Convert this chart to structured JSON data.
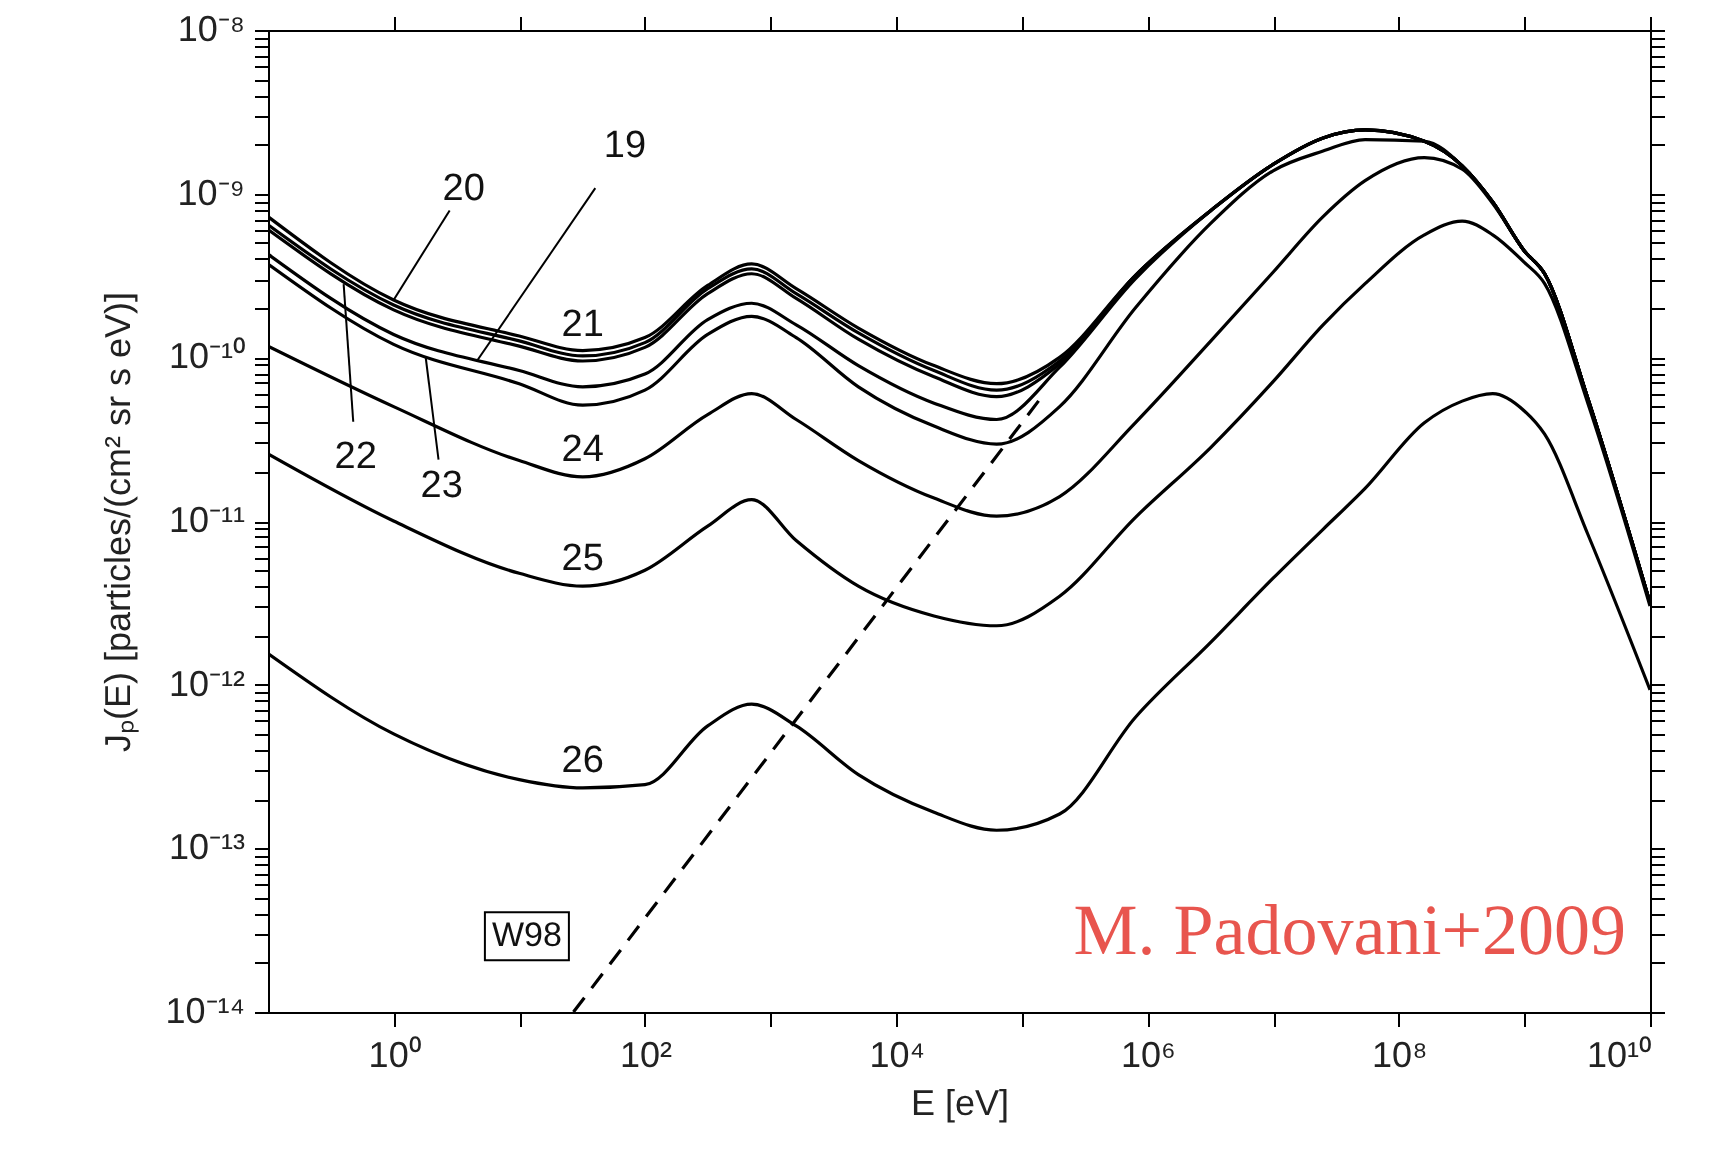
{
  "chart_data": {
    "type": "line",
    "xlabel": "E [eV]",
    "ylabel": "Jₚ(E) [particles/(cm² sr s eV)]",
    "log": "xy",
    "xlim": [
      0.1,
      10000000000.0
    ],
    "ylim": [
      1e-14,
      1e-08
    ],
    "xticks": [
      {
        "value": 1,
        "label": "10⁰"
      },
      {
        "value": 10,
        "label": null
      },
      {
        "value": 100,
        "label": "10²"
      },
      {
        "value": 1000,
        "label": null
      },
      {
        "value": 10000.0,
        "label": "10⁴"
      },
      {
        "value": 100000.0,
        "label": null
      },
      {
        "value": 1000000.0,
        "label": "10⁶"
      },
      {
        "value": 10000000.0,
        "label": null
      },
      {
        "value": 100000000.0,
        "label": "10⁸"
      },
      {
        "value": 1000000000.0,
        "label": null
      },
      {
        "value": 10000000000.0,
        "label": "10¹⁰"
      }
    ],
    "yticks": [
      {
        "value": 1e-14,
        "label": "10⁻¹⁴"
      },
      {
        "value": 2e-14,
        "label": null
      },
      {
        "value": 3e-14,
        "label": null
      },
      {
        "value": 4e-14,
        "label": null
      },
      {
        "value": 5e-14,
        "label": null
      },
      {
        "value": 6e-14,
        "label": null
      },
      {
        "value": 7e-14,
        "label": null
      },
      {
        "value": 8e-14,
        "label": null
      },
      {
        "value": 9e-14,
        "label": null
      },
      {
        "value": 1e-13,
        "label": "10⁻¹³"
      },
      {
        "value": 2e-13,
        "label": null
      },
      {
        "value": 3e-13,
        "label": null
      },
      {
        "value": 4e-13,
        "label": null
      },
      {
        "value": 5e-13,
        "label": null
      },
      {
        "value": 6e-13,
        "label": null
      },
      {
        "value": 7e-13,
        "label": null
      },
      {
        "value": 8e-13,
        "label": null
      },
      {
        "value": 9e-13,
        "label": null
      },
      {
        "value": 1e-12,
        "label": "10⁻¹²"
      },
      {
        "value": 2e-12,
        "label": null
      },
      {
        "value": 3e-12,
        "label": null
      },
      {
        "value": 4e-12,
        "label": null
      },
      {
        "value": 5e-12,
        "label": null
      },
      {
        "value": 6e-12,
        "label": null
      },
      {
        "value": 7e-12,
        "label": null
      },
      {
        "value": 8e-12,
        "label": null
      },
      {
        "value": 9e-12,
        "label": null
      },
      {
        "value": 1e-11,
        "label": "10⁻¹¹"
      },
      {
        "value": 2e-11,
        "label": null
      },
      {
        "value": 3e-11,
        "label": null
      },
      {
        "value": 4e-11,
        "label": null
      },
      {
        "value": 5e-11,
        "label": null
      },
      {
        "value": 6e-11,
        "label": null
      },
      {
        "value": 7e-11,
        "label": null
      },
      {
        "value": 8e-11,
        "label": null
      },
      {
        "value": 9e-11,
        "label": null
      },
      {
        "value": 1e-10,
        "label": "10⁻¹⁰"
      },
      {
        "value": 2e-10,
        "label": null
      },
      {
        "value": 3e-10,
        "label": null
      },
      {
        "value": 4e-10,
        "label": null
      },
      {
        "value": 5e-10,
        "label": null
      },
      {
        "value": 6e-10,
        "label": null
      },
      {
        "value": 7e-10,
        "label": null
      },
      {
        "value": 8e-10,
        "label": null
      },
      {
        "value": 9e-10,
        "label": null
      },
      {
        "value": 1e-09,
        "label": "10⁻⁹"
      },
      {
        "value": 2e-09,
        "label": null
      },
      {
        "value": 3e-09,
        "label": null
      },
      {
        "value": 4e-09,
        "label": null
      },
      {
        "value": 5e-09,
        "label": null
      },
      {
        "value": 6e-09,
        "label": null
      },
      {
        "value": 7e-09,
        "label": null
      },
      {
        "value": 8e-09,
        "label": null
      },
      {
        "value": 9e-09,
        "label": null
      },
      {
        "value": 1e-08,
        "label": "10⁻⁸"
      }
    ],
    "x": [
      0.1,
      1,
      10,
      32,
      100,
      316,
      708,
      1600,
      5000,
      20000,
      63000,
      200000,
      800000,
      3200000,
      10000000,
      25000000,
      54000000,
      160000000,
      320000000,
      560000000,
      1000000000,
      1450000000,
      3200000000,
      10000000000
    ],
    "line_style": "solid",
    "series": [
      {
        "color": "#000000",
        "values": [
          7.24e-10,
          2.24e-10,
          1.35e-10,
          1.1e-10,
          1.32e-10,
          2.75e-10,
          3.72e-10,
          2.63e-10,
          1.51e-10,
          8.9e-11,
          6.9e-11,
          1e-10,
          3.16e-10,
          7.9e-10,
          1.51e-09,
          2.19e-09,
          2.45e-09,
          2.09e-09,
          1.48e-09,
          8.9e-10,
          4.47e-10,
          3.24e-10,
          5.6e-11,
          3.16e-12
        ]
      },
      {
        "color": "#000000",
        "values": [
          6.46e-10,
          2.09e-10,
          1.26e-10,
          1.02e-10,
          1.23e-10,
          2.63e-10,
          3.47e-10,
          2.45e-10,
          1.41e-10,
          8.3e-11,
          6.3e-11,
          9.5e-11,
          3.16e-10,
          7.9e-10,
          1.51e-09,
          2.19e-09,
          2.45e-09,
          2.09e-09,
          1.48e-09,
          8.9e-10,
          4.47e-10,
          3.24e-10,
          5.6e-11,
          3.16e-12
        ]
      },
      {
        "color": "#000000",
        "values": [
          6.03e-10,
          1.95e-10,
          1.17e-10,
          9.5e-11,
          1.15e-10,
          2.45e-10,
          3.24e-10,
          2.29e-10,
          1.29e-10,
          7.6e-11,
          5.75e-11,
          9.1e-11,
          3.16e-10,
          7.9e-10,
          1.51e-09,
          2.19e-09,
          2.45e-09,
          2.09e-09,
          1.48e-09,
          8.9e-10,
          4.47e-10,
          3.24e-10,
          5.6e-11,
          3.16e-12
        ]
      },
      {
        "color": "#000000",
        "values": [
          4.27e-10,
          1.38e-10,
          8.3e-11,
          6.6e-11,
          7.9e-11,
          1.7e-10,
          2.14e-10,
          1.58e-10,
          8.9e-11,
          5.25e-11,
          4.17e-11,
          8.7e-11,
          3.02e-10,
          7.9e-10,
          1.51e-09,
          2.19e-09,
          2.45e-09,
          2.09e-09,
          1.48e-09,
          8.9e-10,
          4.47e-10,
          3.24e-10,
          5.6e-11,
          3.16e-12
        ]
      },
      {
        "color": "#000000",
        "values": [
          3.72e-10,
          1.2e-10,
          6.9e-11,
          5.1e-11,
          6.3e-11,
          1.38e-10,
          1.78e-10,
          1.32e-10,
          6.6e-11,
          3.8e-11,
          2.95e-11,
          5e-11,
          2e-10,
          6.6e-10,
          1.38e-09,
          1.82e-09,
          2.14e-09,
          2.09e-09,
          1.48e-09,
          8.9e-10,
          4.47e-10,
          3.24e-10,
          5.6e-11,
          3.16e-12
        ]
      },
      {
        "color": "#000000",
        "values": [
          1.17e-10,
          5e-11,
          2.34e-11,
          1.86e-11,
          2.4e-11,
          4.47e-11,
          6e-11,
          4.17e-11,
          2.34e-11,
          1.38e-11,
          1.07e-11,
          1.41e-11,
          3.98e-11,
          1.26e-10,
          3.31e-10,
          7.24e-10,
          1.2e-09,
          1.66e-09,
          1.41e-09,
          8.7e-10,
          4.47e-10,
          3.24e-10,
          5.6e-11,
          3.16e-12
        ]
      },
      {
        "color": "#000000",
        "values": [
          2.57e-11,
          1e-11,
          4.79e-12,
          4e-12,
          5e-12,
          9.3e-12,
          1.35e-11,
          7.6e-12,
          4e-12,
          2.63e-12,
          2.29e-12,
          3.47e-12,
          1.05e-11,
          2.82e-11,
          7.1e-11,
          1.58e-10,
          2.82e-10,
          5.6e-10,
          6.8e-10,
          5.6e-10,
          3.8e-10,
          2.82e-10,
          5.25e-11,
          3.02e-12
        ]
      },
      {
        "color": "#000000",
        "values": [
          1.55e-12,
          5e-13,
          2.63e-13,
          2.34e-13,
          2.45e-13,
          5.6e-13,
          7.6e-13,
          5.6e-13,
          2.82e-13,
          1.66e-13,
          1.29e-13,
          1.62e-13,
          6.3e-13,
          1.82e-12,
          4.47e-12,
          8.9e-12,
          1.58e-11,
          3.98e-11,
          5.4e-11,
          6e-11,
          4.7e-11,
          3.39e-11,
          8.3e-12,
          9.3e-13
        ]
      },
      {
        "color": "#000000",
        "line_style": "dashed",
        "x": [
          27,
          138000
        ],
        "values": [
          1e-14,
          5.5e-11
        ]
      }
    ],
    "annotations": [
      {
        "text": "20",
        "x": 1,
        "y": 2.24e-10
      },
      {
        "text": "19",
        "x": 4.6,
        "y": 9.5e-11
      },
      {
        "text": "21",
        "x": 32,
        "y": 1.02e-10
      },
      {
        "text": "22",
        "x": 0.4,
        "y": 2.8e-10
      },
      {
        "text": "23",
        "x": 1.8,
        "y": 1e-10
      },
      {
        "text": "24",
        "x": 32,
        "y": 1.86e-11
      },
      {
        "text": "25",
        "x": 32,
        "y": 4e-12
      },
      {
        "text": "26",
        "x": 32,
        "y": 2.34e-13
      },
      {
        "text": "W98",
        "x": 11.5,
        "y": 2.9e-14
      },
      "M. Padovani+2009"
    ]
  }
}
